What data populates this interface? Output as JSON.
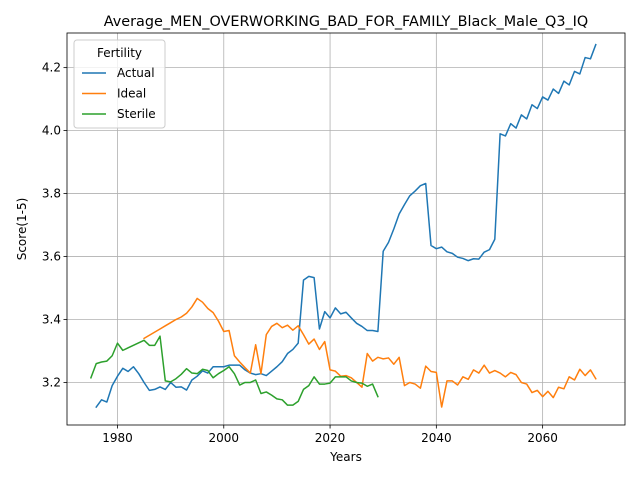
{
  "chart_data": {
    "type": "line",
    "title": "Average_MEN_OVERWORKING_BAD_FOR_FAMILY_Black_Male_Q3_IQ",
    "xlabel": "Years",
    "ylabel": "Score(1-5)",
    "xlim": [
      1970.5,
      2075.5
    ],
    "ylim": [
      3.065,
      4.31
    ],
    "xticks": [
      1980,
      2000,
      2020,
      2040,
      2060
    ],
    "yticks": [
      3.2,
      3.4,
      3.6,
      3.8,
      4.0,
      4.2
    ],
    "xtick_labels": [
      "1980",
      "2000",
      "2020",
      "2040",
      "2060"
    ],
    "ytick_labels": [
      "3.2",
      "3.4",
      "3.6",
      "3.8",
      "4.0",
      "4.2"
    ],
    "grid": true,
    "legend": {
      "title": "Fertility",
      "placement": "upper-left"
    },
    "series": [
      {
        "name": "Actual",
        "color": "#1f77b4",
        "x": [
          1976,
          1977,
          1978,
          1979,
          1980,
          1981,
          1982,
          1983,
          1984,
          1985,
          1986,
          1987,
          1988,
          1989,
          1990,
          1991,
          1992,
          1993,
          1994,
          1995,
          1996,
          1997,
          1998,
          1999,
          2000,
          2001,
          2002,
          2003,
          2004,
          2005,
          2006,
          2007,
          2008,
          2009,
          2010,
          2011,
          2012,
          2013,
          2014,
          2015,
          2016,
          2017,
          2018,
          2019,
          2020,
          2021,
          2022,
          2023,
          2024,
          2025,
          2026,
          2027,
          2028,
          2029,
          2030,
          2031,
          2032,
          2033,
          2034,
          2035,
          2036,
          2037,
          2038,
          2039,
          2040,
          2041,
          2042,
          2043,
          2044,
          2045,
          2046,
          2047,
          2048,
          2049,
          2050,
          2051,
          2052,
          2053,
          2054,
          2055,
          2056,
          2057,
          2058,
          2059,
          2060,
          2061,
          2062,
          2063,
          2064,
          2065,
          2066,
          2067,
          2068,
          2069,
          2070
        ],
        "values": [
          3.122,
          3.145,
          3.138,
          3.19,
          3.22,
          3.245,
          3.235,
          3.25,
          3.228,
          3.2,
          3.175,
          3.178,
          3.186,
          3.178,
          3.2,
          3.185,
          3.186,
          3.176,
          3.208,
          3.22,
          3.237,
          3.23,
          3.25,
          3.25,
          3.25,
          3.255,
          3.255,
          3.255,
          3.24,
          3.23,
          3.225,
          3.228,
          3.222,
          3.236,
          3.25,
          3.266,
          3.292,
          3.305,
          3.325,
          3.525,
          3.537,
          3.533,
          3.37,
          3.425,
          3.405,
          3.437,
          3.418,
          3.423,
          3.405,
          3.388,
          3.378,
          3.365,
          3.365,
          3.362,
          3.617,
          3.645,
          3.688,
          3.735,
          3.765,
          3.793,
          3.808,
          3.825,
          3.832,
          3.635,
          3.625,
          3.63,
          3.615,
          3.61,
          3.598,
          3.594,
          3.587,
          3.593,
          3.592,
          3.614,
          3.622,
          3.655,
          3.99,
          3.983,
          4.022,
          4.008,
          4.05,
          4.037,
          4.082,
          4.07,
          4.107,
          4.097,
          4.132,
          4.118,
          4.157,
          4.145,
          4.188,
          4.18,
          4.232,
          4.228,
          4.273
        ]
      },
      {
        "name": "Ideal",
        "color": "#ff7f0e",
        "x": [
          1985,
          1986,
          1987,
          1988,
          1989,
          1990,
          1991,
          1992,
          1993,
          1994,
          1995,
          1996,
          1997,
          1998,
          1999,
          2000,
          2001,
          2002,
          2003,
          2004,
          2005,
          2006,
          2007,
          2008,
          2009,
          2010,
          2011,
          2012,
          2013,
          2014,
          2015,
          2016,
          2017,
          2018,
          2019,
          2020,
          2021,
          2022,
          2023,
          2024,
          2025,
          2026,
          2027,
          2028,
          2029,
          2030,
          2031,
          2032,
          2033,
          2034,
          2035,
          2036,
          2037,
          2038,
          2039,
          2040,
          2041,
          2042,
          2043,
          2044,
          2045,
          2046,
          2047,
          2048,
          2049,
          2050,
          2051,
          2052,
          2053,
          2054,
          2055,
          2056,
          2057,
          2058,
          2059,
          2060,
          2061,
          2062,
          2063,
          2064,
          2065,
          2066,
          2067,
          2068,
          2069,
          2070
        ],
        "values": [
          3.34,
          3.35,
          3.36,
          3.37,
          3.38,
          3.39,
          3.4,
          3.408,
          3.42,
          3.44,
          3.467,
          3.455,
          3.435,
          3.422,
          3.395,
          3.362,
          3.365,
          3.285,
          3.265,
          3.247,
          3.23,
          3.32,
          3.228,
          3.352,
          3.378,
          3.388,
          3.374,
          3.382,
          3.366,
          3.38,
          3.352,
          3.322,
          3.338,
          3.305,
          3.33,
          3.24,
          3.236,
          3.22,
          3.222,
          3.215,
          3.2,
          3.185,
          3.292,
          3.268,
          3.28,
          3.275,
          3.278,
          3.258,
          3.28,
          3.19,
          3.2,
          3.195,
          3.182,
          3.252,
          3.235,
          3.232,
          3.122,
          3.205,
          3.205,
          3.192,
          3.218,
          3.21,
          3.24,
          3.23,
          3.255,
          3.23,
          3.238,
          3.23,
          3.218,
          3.232,
          3.225,
          3.2,
          3.195,
          3.168,
          3.175,
          3.155,
          3.172,
          3.152,
          3.185,
          3.18,
          3.218,
          3.208,
          3.242,
          3.222,
          3.24,
          3.212
        ]
      },
      {
        "name": "Sterile",
        "color": "#2ca02c",
        "x": [
          1975,
          1976,
          1977,
          1978,
          1979,
          1980,
          1981,
          1982,
          1983,
          1984,
          1985,
          1986,
          1987,
          1988,
          1989,
          1990,
          1991,
          1992,
          1993,
          1994,
          1995,
          1996,
          1997,
          1998,
          1999,
          2000,
          2001,
          2002,
          2003,
          2004,
          2005,
          2006,
          2007,
          2008,
          2009,
          2010,
          2011,
          2012,
          2013,
          2014,
          2015,
          2016,
          2017,
          2018,
          2019,
          2020,
          2021,
          2022,
          2023,
          2024,
          2025,
          2026,
          2027,
          2028,
          2029
        ],
        "values": [
          3.215,
          3.26,
          3.265,
          3.268,
          3.285,
          3.325,
          3.302,
          3.31,
          3.318,
          3.326,
          3.334,
          3.318,
          3.318,
          3.347,
          3.205,
          3.202,
          3.212,
          3.226,
          3.244,
          3.23,
          3.228,
          3.242,
          3.238,
          3.215,
          3.228,
          3.238,
          3.25,
          3.228,
          3.192,
          3.2,
          3.2,
          3.208,
          3.165,
          3.17,
          3.16,
          3.148,
          3.145,
          3.128,
          3.128,
          3.14,
          3.178,
          3.19,
          3.218,
          3.195,
          3.195,
          3.198,
          3.218,
          3.218,
          3.218,
          3.205,
          3.2,
          3.198,
          3.188,
          3.195,
          3.155
        ]
      }
    ]
  }
}
